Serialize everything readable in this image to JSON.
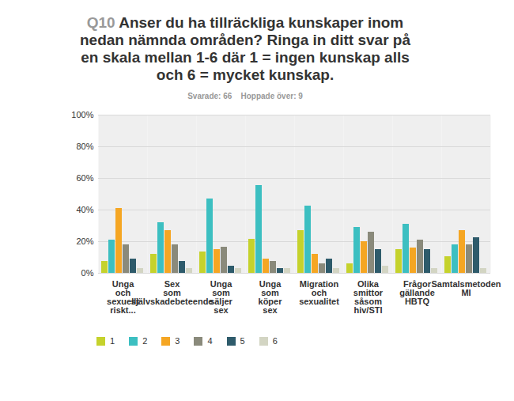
{
  "chart_data": {
    "type": "bar",
    "title": "Q10 Anser du ha tillräckliga kunskaper inom nedan nämnda områden? Ringa in ditt svar på en skala mellan 1-6 där 1 = ingen kunskap alls och 6 = mycket kunskap.",
    "subtitle": "Svarade: 66    Hoppade över: 9",
    "categories": [
      "Unga och sexuellt riskt...",
      "Sex som självskadebeteende",
      "Unga som säljer sex",
      "Unga som köper sex",
      "Migration och sexualitet",
      "Olika smittor såsom hiv/STI",
      "Frågor gällande HBTQ",
      "Samtalsmetoden MI"
    ],
    "series": [
      {
        "name": "1",
        "color": "#c5d22c",
        "values": [
          7.5,
          12,
          13.5,
          21.5,
          27,
          6,
          15,
          10.5
        ]
      },
      {
        "name": "2",
        "color": "#3cbfc1",
        "values": [
          21,
          32,
          47,
          55.5,
          42.5,
          29,
          31,
          18
        ]
      },
      {
        "name": "3",
        "color": "#f5a623",
        "values": [
          41,
          27,
          15,
          9,
          12,
          20,
          16,
          27
        ]
      },
      {
        "name": "4",
        "color": "#8a8a7b",
        "values": [
          18,
          18,
          16.5,
          7.5,
          6,
          26,
          21,
          18
        ]
      },
      {
        "name": "5",
        "color": "#2e5b6b",
        "values": [
          9,
          7.5,
          4.5,
          3,
          9,
          15,
          15,
          22.5
        ]
      },
      {
        "name": "6",
        "color": "#d3d5c3",
        "values": [
          3,
          3,
          3,
          3,
          3,
          4.5,
          3,
          3
        ]
      }
    ],
    "ylim": [
      0,
      100
    ],
    "yticks": [
      {
        "value": 0,
        "label": "0%"
      },
      {
        "value": 20,
        "label": "20%"
      },
      {
        "value": 40,
        "label": "40%"
      },
      {
        "value": 60,
        "label": "60%"
      },
      {
        "value": 80,
        "label": "80%"
      },
      {
        "value": 100,
        "label": "100%"
      }
    ],
    "grid": true,
    "legend": "bottom"
  }
}
